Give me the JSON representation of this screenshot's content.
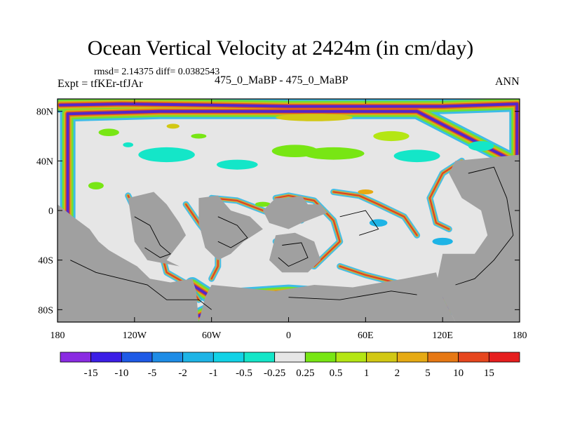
{
  "chart_data": {
    "type": "heatmap",
    "title": "Ocean Vertical Velocity at 2424m (in cm/day)",
    "annotations": {
      "stats": "rmsd= 2.14375 diff= 0.0382543",
      "experiment": "Expt = tfKEr-tfJAr",
      "case": "475_0_MaBP - 475_0_MaBP",
      "season": "ANN"
    },
    "x_ticks": [
      {
        "value": -180,
        "label": "180"
      },
      {
        "value": -120,
        "label": "120W"
      },
      {
        "value": -60,
        "label": "60W"
      },
      {
        "value": 0,
        "label": "0"
      },
      {
        "value": 60,
        "label": "60E"
      },
      {
        "value": 120,
        "label": "120E"
      },
      {
        "value": 180,
        "label": "180"
      }
    ],
    "y_ticks": [
      {
        "value": 80,
        "label": "80N"
      },
      {
        "value": 40,
        "label": "40N"
      },
      {
        "value": 0,
        "label": "0"
      },
      {
        "value": -40,
        "label": "40S"
      },
      {
        "value": -80,
        "label": "80S"
      }
    ],
    "xlim": [
      -180,
      180
    ],
    "ylim": [
      -90,
      90
    ],
    "colorbar": {
      "boundaries": [
        "-15",
        "-10",
        "-5",
        "-2",
        "-1",
        "-0.5",
        "-0.25",
        "0.25",
        "0.5",
        "1",
        "2",
        "5",
        "10",
        "15"
      ],
      "colors": [
        "#8a2be2",
        "#3c1ee6",
        "#1e5ae6",
        "#1e8ce6",
        "#1eb4e6",
        "#12d2e6",
        "#14e6c8",
        "#e6e6e6",
        "#78e614",
        "#b4e614",
        "#d2c814",
        "#e6aa14",
        "#e67814",
        "#e6461e",
        "#e61e1e"
      ]
    },
    "land_color": "#a0a0a0",
    "ocean_background_color": "#e6e6e6"
  }
}
